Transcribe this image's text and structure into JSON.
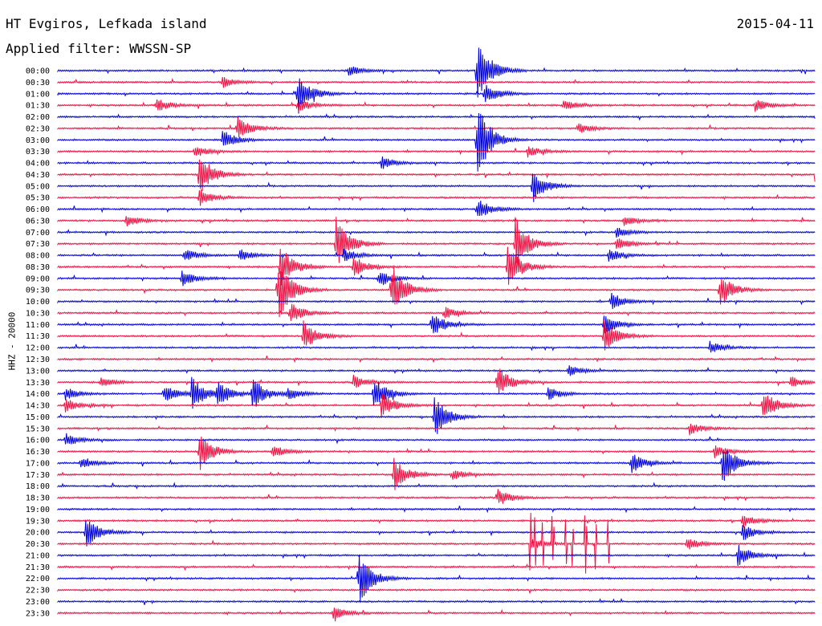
{
  "header": {
    "station": "HT Evgiros, Lefkada island",
    "date": "2015-04-11",
    "filter_label": "Applied filter: WWSSN-SP"
  },
  "colors": {
    "even_trace": "#0000dd",
    "odd_trace": "#ee1144"
  },
  "chart_data": {
    "type": "line",
    "ylabel": "HHZ - 20000",
    "row_labels": [
      "00:00",
      "00:30",
      "01:00",
      "01:30",
      "02:00",
      "02:30",
      "03:00",
      "03:30",
      "04:00",
      "04:30",
      "05:00",
      "05:30",
      "06:00",
      "06:30",
      "07:00",
      "07:30",
      "08:00",
      "08:30",
      "09:00",
      "09:30",
      "10:00",
      "10:30",
      "11:00",
      "11:30",
      "12:00",
      "12:30",
      "13:00",
      "13:30",
      "14:00",
      "14:30",
      "15:00",
      "15:30",
      "16:00",
      "16:30",
      "17:00",
      "17:30",
      "18:00",
      "18:30",
      "19:00",
      "19:30",
      "20:00",
      "20:30",
      "21:00",
      "21:30",
      "22:00",
      "22:30",
      "23:00",
      "23:30"
    ],
    "x_range_minutes": [
      0,
      30
    ],
    "events": [
      {
        "row": 0,
        "minute": 11.5,
        "amp": 0.5
      },
      {
        "row": 0,
        "minute": 16.6,
        "amp": 3.2
      },
      {
        "row": 1,
        "minute": 6.5,
        "amp": 0.5
      },
      {
        "row": 2,
        "minute": 9.5,
        "amp": 2.0
      },
      {
        "row": 2,
        "minute": 16.9,
        "amp": 1.0
      },
      {
        "row": 3,
        "minute": 3.9,
        "amp": 0.6
      },
      {
        "row": 3,
        "minute": 9.5,
        "amp": 0.6
      },
      {
        "row": 3,
        "minute": 20.0,
        "amp": 0.5
      },
      {
        "row": 3,
        "minute": 27.6,
        "amp": 0.6
      },
      {
        "row": 4,
        "minute": 30.0,
        "amp": 0.8
      },
      {
        "row": 5,
        "minute": 7.1,
        "amp": 1.2
      },
      {
        "row": 5,
        "minute": 20.6,
        "amp": 0.5
      },
      {
        "row": 6,
        "minute": 6.5,
        "amp": 1.0
      },
      {
        "row": 6,
        "minute": 16.6,
        "amp": 3.5
      },
      {
        "row": 7,
        "minute": 5.4,
        "amp": 0.6
      },
      {
        "row": 7,
        "minute": 18.6,
        "amp": 0.5
      },
      {
        "row": 8,
        "minute": 12.8,
        "amp": 0.6
      },
      {
        "row": 9,
        "minute": 5.6,
        "amp": 2.0
      },
      {
        "row": 9,
        "minute": 30.0,
        "amp": 2.0
      },
      {
        "row": 10,
        "minute": 18.8,
        "amp": 1.5
      },
      {
        "row": 11,
        "minute": 5.6,
        "amp": 0.8
      },
      {
        "row": 12,
        "minute": 16.6,
        "amp": 1.0
      },
      {
        "row": 13,
        "minute": 2.7,
        "amp": 0.6
      },
      {
        "row": 13,
        "minute": 22.4,
        "amp": 0.5
      },
      {
        "row": 14,
        "minute": 22.1,
        "amp": 0.5
      },
      {
        "row": 15,
        "minute": 11.0,
        "amp": 2.5
      },
      {
        "row": 15,
        "minute": 18.1,
        "amp": 2.5
      },
      {
        "row": 15,
        "minute": 22.1,
        "amp": 0.6
      },
      {
        "row": 16,
        "minute": 5.0,
        "amp": 0.6
      },
      {
        "row": 16,
        "minute": 7.2,
        "amp": 0.6
      },
      {
        "row": 16,
        "minute": 11.3,
        "amp": 0.6
      },
      {
        "row": 16,
        "minute": 21.8,
        "amp": 0.6
      },
      {
        "row": 17,
        "minute": 8.8,
        "amp": 2.0
      },
      {
        "row": 17,
        "minute": 11.7,
        "amp": 1.0
      },
      {
        "row": 17,
        "minute": 17.8,
        "amp": 2.0
      },
      {
        "row": 18,
        "minute": 4.9,
        "amp": 0.8
      },
      {
        "row": 18,
        "minute": 12.7,
        "amp": 0.8
      },
      {
        "row": 19,
        "minute": 8.7,
        "amp": 3.0
      },
      {
        "row": 19,
        "minute": 13.2,
        "amp": 2.5
      },
      {
        "row": 19,
        "minute": 26.2,
        "amp": 1.5
      },
      {
        "row": 20,
        "minute": 21.9,
        "amp": 0.8
      },
      {
        "row": 21,
        "minute": 9.2,
        "amp": 1.0
      },
      {
        "row": 21,
        "minute": 15.3,
        "amp": 0.6
      },
      {
        "row": 22,
        "minute": 14.8,
        "amp": 1.2
      },
      {
        "row": 22,
        "minute": 21.6,
        "amp": 1.0
      },
      {
        "row": 23,
        "minute": 9.7,
        "amp": 1.5
      },
      {
        "row": 23,
        "minute": 21.6,
        "amp": 1.5
      },
      {
        "row": 24,
        "minute": 25.8,
        "amp": 0.6
      },
      {
        "row": 26,
        "minute": 20.2,
        "amp": 0.5
      },
      {
        "row": 27,
        "minute": 1.7,
        "amp": 0.5
      },
      {
        "row": 27,
        "minute": 11.7,
        "amp": 0.6
      },
      {
        "row": 27,
        "minute": 17.4,
        "amp": 1.5
      },
      {
        "row": 27,
        "minute": 29.0,
        "amp": 0.5
      },
      {
        "row": 28,
        "minute": 0.3,
        "amp": 0.6
      },
      {
        "row": 28,
        "minute": 4.2,
        "amp": 0.8
      },
      {
        "row": 28,
        "minute": 5.3,
        "amp": 1.5
      },
      {
        "row": 28,
        "minute": 6.3,
        "amp": 1.2
      },
      {
        "row": 28,
        "minute": 7.7,
        "amp": 1.5
      },
      {
        "row": 28,
        "minute": 9.1,
        "amp": 0.6
      },
      {
        "row": 28,
        "minute": 12.5,
        "amp": 1.5
      },
      {
        "row": 28,
        "minute": 19.4,
        "amp": 0.6
      },
      {
        "row": 29,
        "minute": 0.3,
        "amp": 0.6
      },
      {
        "row": 29,
        "minute": 12.8,
        "amp": 1.2
      },
      {
        "row": 29,
        "minute": 27.9,
        "amp": 1.5
      },
      {
        "row": 30,
        "minute": 14.9,
        "amp": 2.0
      },
      {
        "row": 31,
        "minute": 25.0,
        "amp": 0.6
      },
      {
        "row": 32,
        "minute": 0.3,
        "amp": 0.6
      },
      {
        "row": 33,
        "minute": 5.6,
        "amp": 1.8
      },
      {
        "row": 33,
        "minute": 8.5,
        "amp": 0.6
      },
      {
        "row": 33,
        "minute": 26.0,
        "amp": 0.6
      },
      {
        "row": 34,
        "minute": 0.9,
        "amp": 0.5
      },
      {
        "row": 34,
        "minute": 22.7,
        "amp": 1.0
      },
      {
        "row": 34,
        "minute": 26.3,
        "amp": 2.0
      },
      {
        "row": 35,
        "minute": 13.3,
        "amp": 1.5
      },
      {
        "row": 35,
        "minute": 15.6,
        "amp": 0.5
      },
      {
        "row": 37,
        "minute": 17.4,
        "amp": 0.8
      },
      {
        "row": 39,
        "minute": 27.1,
        "amp": 0.6
      },
      {
        "row": 40,
        "minute": 1.1,
        "amp": 1.5
      },
      {
        "row": 40,
        "minute": 27.1,
        "amp": 0.8
      },
      {
        "row": 41,
        "minute": 24.9,
        "amp": 0.6
      },
      {
        "row": 41,
        "minute": 18.7,
        "amp": 0.6
      },
      {
        "row": 42,
        "minute": 26.9,
        "amp": 1.0
      },
      {
        "row": 44,
        "minute": 11.9,
        "amp": 2.5
      },
      {
        "row": 47,
        "minute": 10.9,
        "amp": 0.6
      }
    ],
    "spike_clusters": [
      {
        "row": 41,
        "minutes": [
          18.7,
          18.9,
          19.2,
          19.6,
          20.1,
          20.4,
          20.9,
          21.3,
          21.8
        ],
        "amp": 2.5
      }
    ]
  }
}
